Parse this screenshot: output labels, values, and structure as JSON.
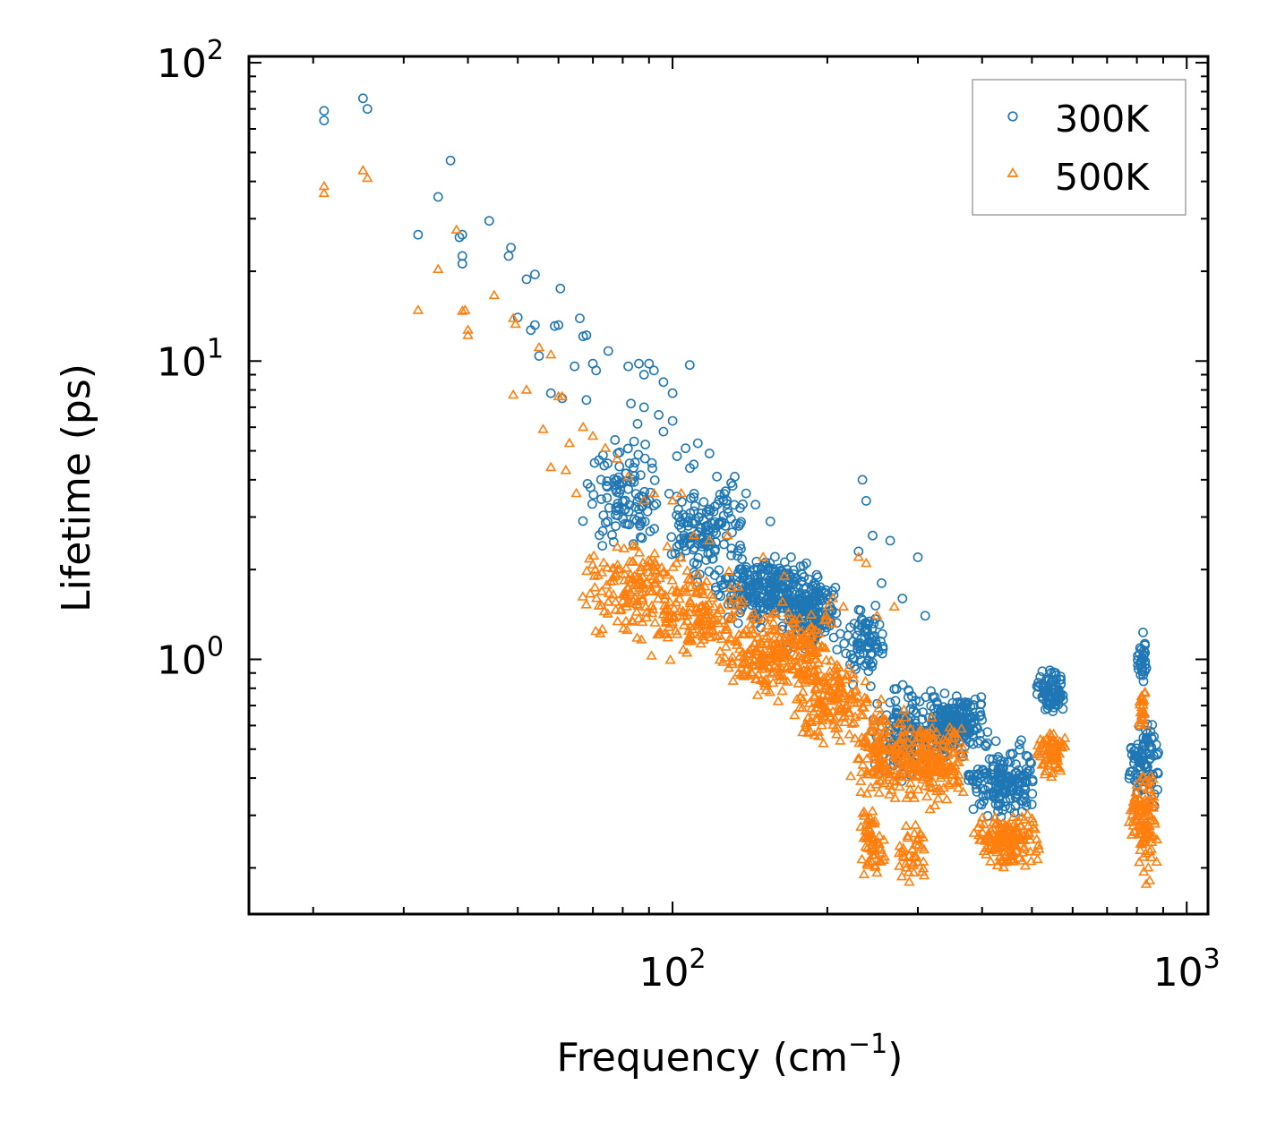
{
  "chart_data": {
    "type": "scatter",
    "title": "",
    "xlabel": "Frequency (cm",
    "xlabel_sup": "−1",
    "xlabel_end": ")",
    "ylabel": "Lifetime (ps)",
    "xscale": "log",
    "yscale": "log",
    "xlim": [
      15,
      1100
    ],
    "ylim": [
      0.14,
      105
    ],
    "xticks": [
      {
        "value": 100,
        "base": "10",
        "exp": "2"
      },
      {
        "value": 1000,
        "base": "10",
        "exp": "3"
      }
    ],
    "yticks": [
      {
        "value": 1,
        "base": "10",
        "exp": "0"
      },
      {
        "value": 10,
        "base": "10",
        "exp": "1"
      },
      {
        "value": 100,
        "base": "10",
        "exp": "2"
      }
    ],
    "legend_position": "top-right",
    "series": [
      {
        "name": "300K",
        "marker": "circle",
        "color": "#1f77b4",
        "points": [
          [
            21,
            69
          ],
          [
            21,
            64
          ],
          [
            25,
            76
          ],
          [
            25.5,
            70
          ],
          [
            37,
            47
          ],
          [
            35,
            35.5
          ],
          [
            32,
            26.5
          ],
          [
            38.5,
            26
          ],
          [
            39,
            26.5
          ],
          [
            39,
            22.5
          ],
          [
            39,
            21.2
          ],
          [
            44,
            29.5
          ],
          [
            48,
            22.5
          ],
          [
            48.5,
            24
          ],
          [
            52,
            18.8
          ],
          [
            54,
            19.5
          ],
          [
            50,
            14
          ],
          [
            53,
            12.7
          ],
          [
            54,
            13.2
          ],
          [
            55,
            10.4
          ],
          [
            58,
            7.8
          ],
          [
            59,
            13.1
          ],
          [
            60,
            13.2
          ],
          [
            61,
            7.5
          ],
          [
            60.5,
            17.5
          ],
          [
            64.5,
            9.6
          ],
          [
            66,
            13.9
          ],
          [
            67,
            12.1
          ],
          [
            68,
            12.2
          ],
          [
            70,
            9.8
          ],
          [
            71,
            9.3
          ],
          [
            75,
            10.8
          ],
          [
            68,
            7.4
          ],
          [
            82,
            9.6
          ],
          [
            86,
            9.8
          ],
          [
            88,
            9
          ],
          [
            90,
            9.8
          ],
          [
            92,
            9.3
          ],
          [
            96,
            8.5
          ],
          [
            100,
            7.8
          ],
          [
            108,
            9.7
          ],
          [
            83,
            7.2
          ],
          [
            88,
            7
          ],
          [
            94,
            6.6
          ],
          [
            100,
            6.3
          ],
          [
            106,
            5.1
          ],
          [
            112,
            5.3
          ],
          [
            118,
            4.9
          ],
          [
            96,
            5.8
          ],
          [
            102,
            4.8
          ],
          [
            110,
            4.5
          ],
          [
            122,
            4.1
          ],
          [
            130,
            3.9
          ],
          [
            139,
            3.6
          ],
          [
            145,
            3.3
          ],
          [
            155,
            2.9
          ],
          [
            170,
            2.2
          ],
          [
            182,
            2.1
          ],
          [
            230,
            2.3
          ],
          [
            234,
            4
          ],
          [
            238,
            3.4
          ],
          [
            245,
            2.6
          ],
          [
            255,
            1.8
          ],
          [
            265,
            2.5
          ],
          [
            280,
            1.6
          ],
          [
            300,
            2.2
          ],
          [
            310,
            1.4
          ]
        ],
        "clusters": [
          {
            "x": [
              66,
              100
            ],
            "y": [
              2.0,
              6.5
            ],
            "n": 110
          },
          {
            "x": [
              95,
              140
            ],
            "y": [
              1.6,
              4.5
            ],
            "n": 140
          },
          {
            "x": [
              120,
              200
            ],
            "y": [
              1.2,
              2.4
            ],
            "n": 260
          },
          {
            "x": [
              160,
              215
            ],
            "y": [
              0.95,
              2.0
            ],
            "n": 150
          },
          {
            "x": [
              215,
              262
            ],
            "y": [
              0.75,
              1.6
            ],
            "n": 80
          },
          {
            "x": [
              240,
              330
            ],
            "y": [
              0.35,
              0.9
            ],
            "n": 140
          },
          {
            "x": [
              300,
              420
            ],
            "y": [
              0.45,
              0.8
            ],
            "n": 220
          },
          {
            "x": [
              370,
              520
            ],
            "y": [
              0.28,
              0.55
            ],
            "n": 180
          },
          {
            "x": [
              510,
              585
            ],
            "y": [
              0.6,
              1.0
            ],
            "n": 90
          },
          {
            "x": [
              770,
              885
            ],
            "y": [
              0.3,
              0.7
            ],
            "n": 90
          },
          {
            "x": [
              800,
              840
            ],
            "y": [
              0.75,
              1.3
            ],
            "n": 30
          }
        ]
      },
      {
        "name": "500K",
        "marker": "triangle",
        "color": "#ff7f0e",
        "points": [
          [
            21,
            38.5
          ],
          [
            21,
            36.5
          ],
          [
            25,
            43.5
          ],
          [
            25.5,
            41
          ],
          [
            32,
            14.8
          ],
          [
            35,
            20.3
          ],
          [
            38,
            27.5
          ],
          [
            39,
            14.7
          ],
          [
            39.5,
            14.8
          ],
          [
            40,
            12.7
          ],
          [
            40,
            12.2
          ],
          [
            45,
            16.6
          ],
          [
            49,
            13.9
          ],
          [
            49.5,
            13.3
          ],
          [
            52,
            8
          ],
          [
            49,
            7.7
          ],
          [
            55,
            11.1
          ],
          [
            58,
            10.5
          ],
          [
            60,
            7.6
          ],
          [
            61,
            7.6
          ],
          [
            56,
            5.9
          ],
          [
            58,
            4.4
          ],
          [
            62,
            4.3
          ],
          [
            63,
            5.3
          ],
          [
            65,
            3.6
          ],
          [
            67,
            6
          ],
          [
            70,
            5.6
          ],
          [
            74,
            5.1
          ],
          [
            78,
            4.7
          ],
          [
            82,
            4.1
          ],
          [
            88,
            3.4
          ],
          [
            92,
            3.6
          ],
          [
            100,
            3.4
          ],
          [
            104,
            3.6
          ],
          [
            110,
            2.6
          ],
          [
            118,
            2.5
          ],
          [
            128,
            2.6
          ],
          [
            150,
            2.2
          ],
          [
            165,
            1.9
          ],
          [
            205,
            1.6
          ],
          [
            215,
            1.5
          ],
          [
            230,
            2.2
          ],
          [
            238,
            2.1
          ],
          [
            250,
            1.4
          ],
          [
            270,
            1.5
          ]
        ],
        "clusters": [
          {
            "x": [
              66,
              105
            ],
            "y": [
              1.05,
              2.8
            ],
            "n": 150
          },
          {
            "x": [
              90,
              140
            ],
            "y": [
              0.9,
              2.2
            ],
            "n": 150
          },
          {
            "x": [
              120,
              210
            ],
            "y": [
              0.7,
              1.6
            ],
            "n": 260
          },
          {
            "x": [
              170,
              240
            ],
            "y": [
              0.5,
              1.1
            ],
            "n": 150
          },
          {
            "x": [
              220,
              290
            ],
            "y": [
              0.3,
              0.8
            ],
            "n": 130
          },
          {
            "x": [
              230,
              260
            ],
            "y": [
              0.17,
              0.35
            ],
            "n": 60
          },
          {
            "x": [
              260,
              380
            ],
            "y": [
              0.3,
              0.7
            ],
            "n": 220
          },
          {
            "x": [
              270,
              320
            ],
            "y": [
              0.17,
              0.3
            ],
            "n": 40
          },
          {
            "x": [
              380,
              520
            ],
            "y": [
              0.19,
              0.32
            ],
            "n": 160
          },
          {
            "x": [
              510,
              585
            ],
            "y": [
              0.38,
              0.6
            ],
            "n": 70
          },
          {
            "x": [
              770,
              885
            ],
            "y": [
              0.17,
              0.5
            ],
            "n": 110
          },
          {
            "x": [
              805,
              835
            ],
            "y": [
              0.55,
              0.9
            ],
            "n": 25
          }
        ]
      }
    ]
  }
}
